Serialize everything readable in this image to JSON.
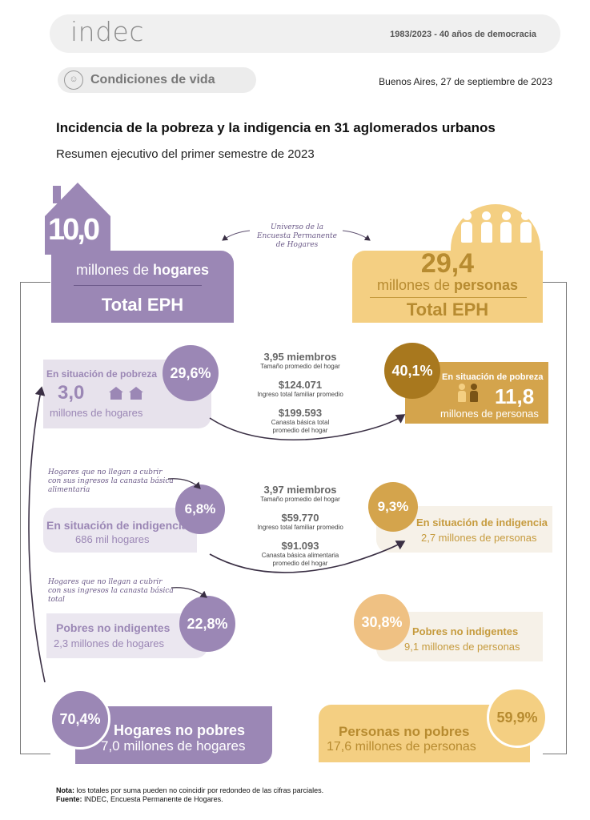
{
  "header": {
    "logo": "indec",
    "tagline": "1983/2023 - 40 años de democracia"
  },
  "section": {
    "icon": "people-group-icon",
    "label": "Condiciones de vida",
    "date": "Buenos Aires, 27 de septiembre de 2023"
  },
  "title": "Incidencia de la pobreza y la indigencia en 31 aglomerados urbanos",
  "subtitle": "Resumen ejecutivo del primer semestre de 2023",
  "universo": "Universo de la Encuesta Permanente de Hogares",
  "hogares_total": {
    "number": "10,0",
    "unit_prefix": "millones de ",
    "unit_bold": "hogares",
    "label": "Total EPH"
  },
  "personas_total": {
    "number": "29,4",
    "unit_prefix": "millones de ",
    "unit_bold": "personas",
    "label": "Total EPH"
  },
  "pobreza_hogares": {
    "percent": "29,6%",
    "label": "En situación de pobreza",
    "number": "3,0",
    "unit": "millones de hogares"
  },
  "pobreza_stats": {
    "miembros": "3,95 miembros",
    "miembros_desc": "Tamaño promedio del hogar",
    "ingreso": "$124.071",
    "ingreso_desc": "Ingreso total familiar promedio",
    "canasta": "$199.593",
    "canasta_desc_1": "Canasta básica total",
    "canasta_desc_2": "promedio del hogar"
  },
  "pobreza_personas": {
    "percent": "40,1%",
    "label": "En situación de pobreza",
    "number": "11,8",
    "unit": "millones de personas"
  },
  "annot_indigencia": "Hogares que no llegan a cubrir con sus ingresos la canasta básica alimentaria",
  "indigencia_hogares": {
    "percent": "6,8%",
    "label": "En situación de indigencia",
    "unit": "686 mil hogares"
  },
  "indigencia_stats": {
    "miembros": "3,97 miembros",
    "miembros_desc": "Tamaño promedio del hogar",
    "ingreso": "$59.770",
    "ingreso_desc": "Ingreso total familiar promedio",
    "canasta": "$91.093",
    "canasta_desc_1": "Canasta básica alimentaria",
    "canasta_desc_2": "promedio del hogar"
  },
  "indigencia_personas": {
    "percent": "9,3%",
    "label": "En situación de indigencia",
    "unit": "2,7 millones de personas"
  },
  "annot_pobreza": "Hogares que no llegan a cubrir con sus ingresos la canasta básica total",
  "pobres_no_indigentes_hogares": {
    "percent": "22,8%",
    "label": "Pobres no indigentes",
    "unit": "2,3 millones de hogares"
  },
  "pobres_no_indigentes_personas": {
    "percent": "30,8%",
    "label": "Pobres no indigentes",
    "unit": "9,1 millones de personas"
  },
  "no_pobres_hogares": {
    "percent": "70,4%",
    "label": "Hogares no pobres",
    "unit": "7,0 millones de hogares"
  },
  "no_pobres_personas": {
    "percent": "59,9%",
    "label": "Personas no pobres",
    "unit": "17,6 millones de personas"
  },
  "footer": {
    "nota_label": "Nota:",
    "nota_text": " los totales por suma pueden no coincidir por redondeo de las cifras parciales.",
    "fuente_label": "Fuente:",
    "fuente_text": " INDEC, Encuesta Permanente de Hogares."
  },
  "colors": {
    "purple": "#9b87b5",
    "purple_light": "#ebe7f0",
    "gold": "#f4cf82",
    "gold_dark": "#b78b30"
  }
}
